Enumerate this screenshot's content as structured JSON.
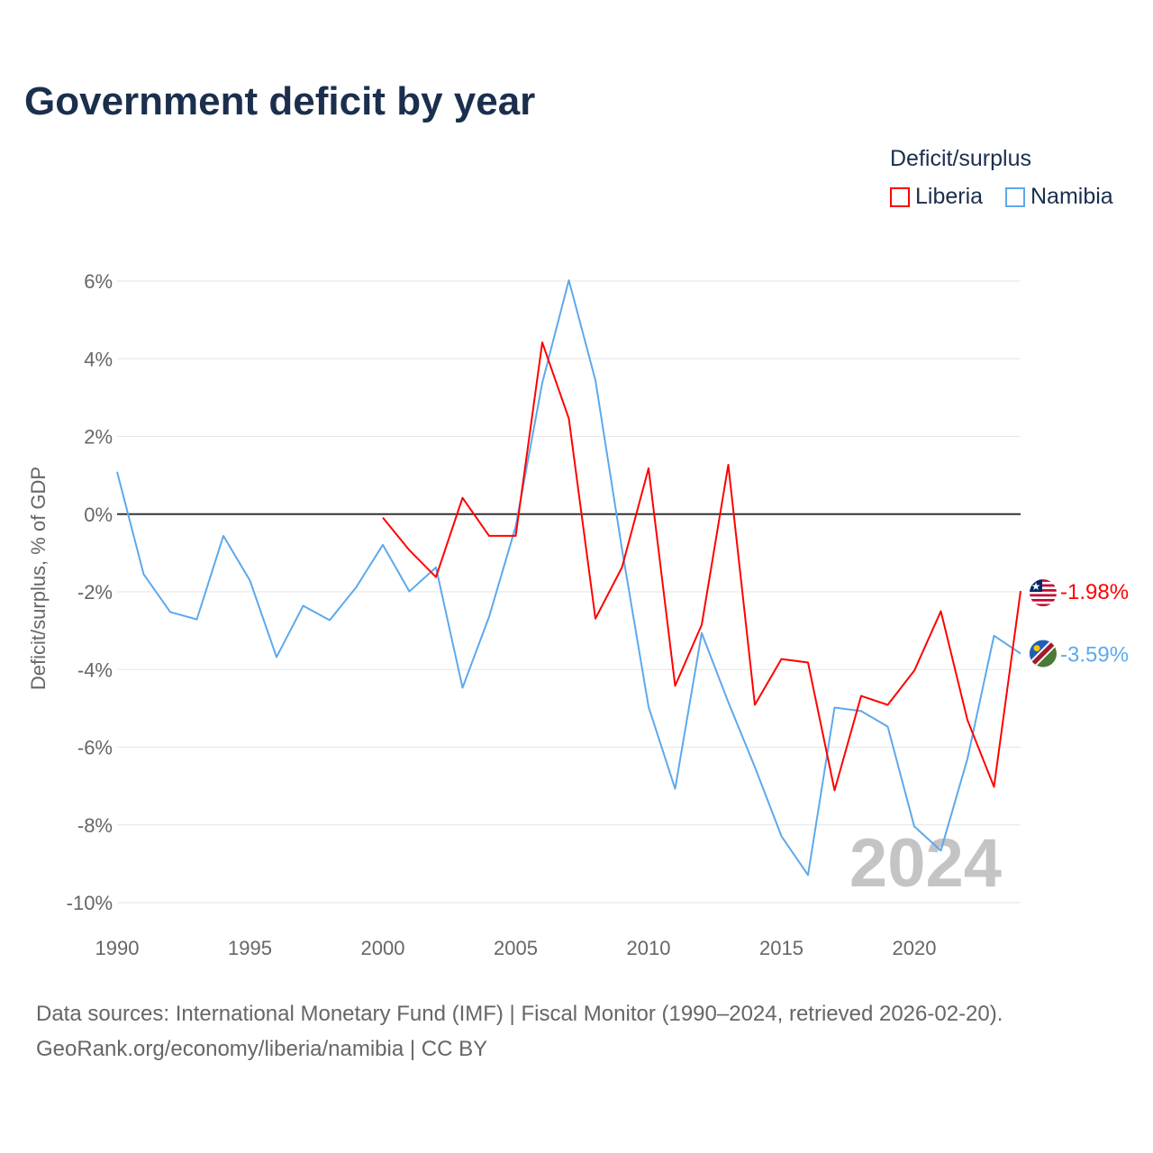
{
  "chart_data": {
    "type": "line",
    "title": "Government deficit by year",
    "ylabel": "Deficit/surplus, % of GDP",
    "xlabel": "",
    "legend_title": "Deficit/surplus",
    "legend_position": "top-right",
    "watermark_year": "2024",
    "xlim": [
      1990,
      2024
    ],
    "ylim": [
      -10,
      6
    ],
    "x_ticks": [
      1990,
      1995,
      2000,
      2005,
      2010,
      2015,
      2020
    ],
    "y_ticks": [
      6,
      4,
      2,
      0,
      -2,
      -4,
      -6,
      -8,
      -10
    ],
    "y_tick_labels": [
      "6%",
      "4%",
      "2%",
      "0%",
      "-2%",
      "-4%",
      "-6%",
      "-8%",
      "-10%"
    ],
    "grid": true,
    "series": [
      {
        "name": "Liberia",
        "color": "#ff0000",
        "end_label": "-1.98%",
        "flag": "liberia-flag",
        "x": [
          2000,
          2001,
          2002,
          2003,
          2004,
          2005,
          2006,
          2007,
          2008,
          2009,
          2010,
          2011,
          2012,
          2013,
          2014,
          2015,
          2016,
          2017,
          2018,
          2019,
          2020,
          2021,
          2022,
          2023,
          2024
        ],
        "values": [
          -0.09,
          -0.93,
          -1.62,
          0.42,
          -0.56,
          -0.56,
          4.42,
          2.46,
          -2.69,
          -1.37,
          1.18,
          -4.42,
          -2.85,
          1.27,
          -4.91,
          -3.73,
          -3.82,
          -7.11,
          -4.68,
          -4.91,
          -4.03,
          -2.5,
          -5.3,
          -7.02,
          -1.98
        ]
      },
      {
        "name": "Namibia",
        "color": "#5ea8ec",
        "end_label": "-3.59%",
        "flag": "namibia-flag",
        "x": [
          1990,
          1991,
          1992,
          1993,
          1994,
          1995,
          1996,
          1997,
          1998,
          1999,
          2000,
          2001,
          2002,
          2003,
          2004,
          2005,
          2006,
          2007,
          2008,
          2009,
          2010,
          2011,
          2012,
          2013,
          2014,
          2015,
          2016,
          2017,
          2018,
          2019,
          2020,
          2021,
          2022,
          2023,
          2024
        ],
        "values": [
          1.09,
          -1.55,
          -2.52,
          -2.71,
          -0.56,
          -1.71,
          -3.68,
          -2.36,
          -2.73,
          -1.88,
          -0.79,
          -1.99,
          -1.37,
          -4.47,
          -2.64,
          -0.32,
          3.38,
          6.02,
          3.45,
          -0.9,
          -4.96,
          -7.07,
          -3.06,
          -4.84,
          -6.51,
          -8.29,
          -9.29,
          -4.98,
          -5.07,
          -5.47,
          -8.04,
          -8.66,
          -6.3,
          -3.13,
          -3.59
        ]
      }
    ]
  },
  "source": {
    "line1": "Data sources: International Monetary Fund (IMF) | Fiscal Monitor (1990–2024, retrieved 2026-02-20).",
    "line2": "GeoRank.org/economy/liberia/namibia | CC BY"
  }
}
